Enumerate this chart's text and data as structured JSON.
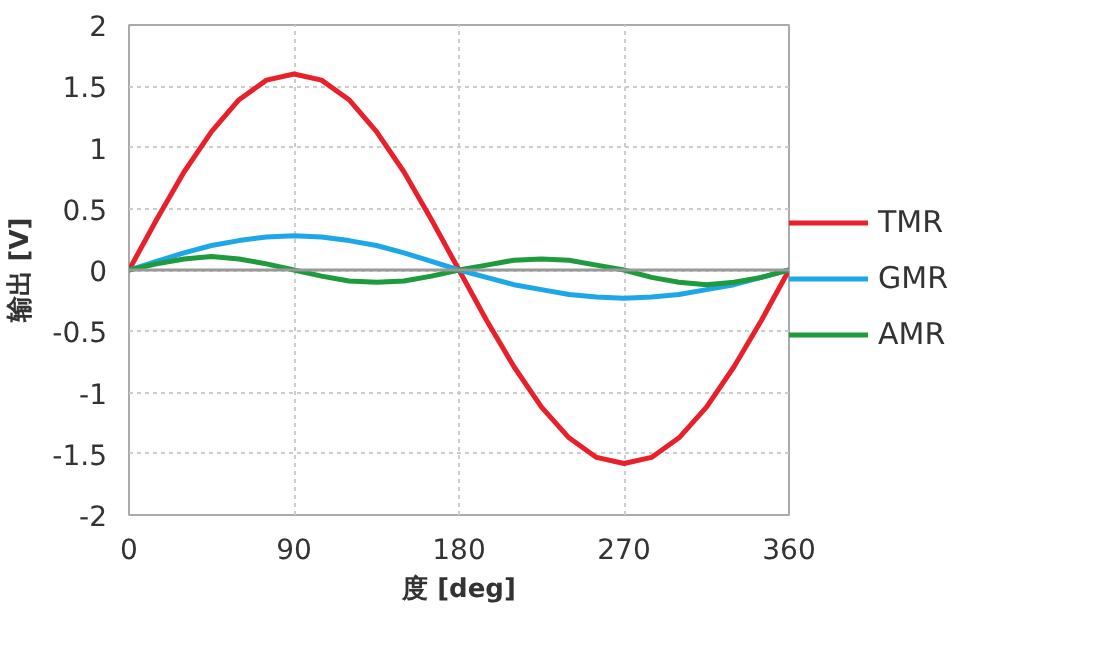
{
  "chart_data": {
    "type": "line",
    "xlabel": "度 [deg]",
    "ylabel": "输出 [V]",
    "x": [
      0,
      15,
      30,
      45,
      60,
      75,
      90,
      105,
      120,
      135,
      150,
      165,
      180,
      195,
      210,
      225,
      240,
      255,
      270,
      285,
      300,
      315,
      330,
      345,
      360
    ],
    "series": [
      {
        "name": "TMR",
        "color": "#e8202a",
        "values": [
          0,
          0.41,
          0.8,
          1.13,
          1.39,
          1.55,
          1.6,
          1.55,
          1.39,
          1.13,
          0.8,
          0.41,
          0,
          -0.41,
          -0.79,
          -1.12,
          -1.37,
          -1.53,
          -1.58,
          -1.53,
          -1.37,
          -1.12,
          -0.79,
          -0.41,
          0
        ]
      },
      {
        "name": "GMR",
        "color": "#1ea7e8",
        "values": [
          0,
          0.07,
          0.14,
          0.2,
          0.24,
          0.27,
          0.28,
          0.27,
          0.24,
          0.2,
          0.14,
          0.07,
          0,
          -0.06,
          -0.12,
          -0.16,
          -0.2,
          -0.22,
          -0.23,
          -0.22,
          -0.2,
          -0.16,
          -0.12,
          -0.06,
          0
        ]
      },
      {
        "name": "AMR",
        "color": "#1f9a3c",
        "values": [
          0,
          0.05,
          0.09,
          0.11,
          0.09,
          0.05,
          0,
          -0.05,
          -0.09,
          -0.1,
          -0.09,
          -0.05,
          0,
          0.04,
          0.08,
          0.09,
          0.08,
          0.04,
          0,
          -0.06,
          -0.1,
          -0.12,
          -0.1,
          -0.06,
          0
        ]
      }
    ],
    "xlim": [
      0,
      360
    ],
    "xticks": [
      0,
      90,
      180,
      270,
      360
    ],
    "ylim": [
      -2,
      2
    ],
    "yticks": [
      -2,
      -1.5,
      -1,
      -0.5,
      0,
      0.5,
      1,
      1.5,
      2
    ],
    "ref_lines": [
      {
        "axis": "y",
        "value": 0,
        "color": "#999999"
      }
    ],
    "grid": true,
    "legend": "right",
    "marker": "none",
    "line_style": "solid"
  }
}
